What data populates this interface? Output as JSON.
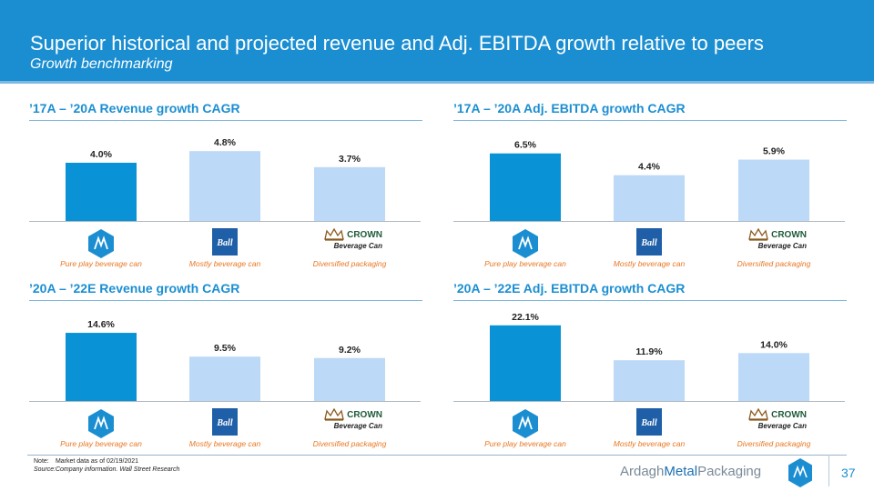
{
  "header": {
    "title": "Superior historical and projected revenue and Adj. EBITDA growth relative to peers",
    "subtitle": "Growth benchmarking"
  },
  "categories_captions": [
    "Pure play beverage can",
    "Mostly beverage can",
    "Diversified packaging"
  ],
  "logos": {
    "amp": "AMP",
    "ball": "Ball",
    "crown": "CROWN",
    "crown_sub": "Beverage Can"
  },
  "colors": {
    "header_blue": "#1b8ed1",
    "amp_bar": "#0a92d6",
    "peer_bar": "#bcd9f7",
    "caption_orange": "#e87722"
  },
  "chart_data": [
    {
      "type": "bar",
      "title": "’17A – ’20A Revenue growth CAGR",
      "categories": [
        "Pure play beverage can",
        "Mostly beverage can",
        "Diversified packaging"
      ],
      "values": [
        4.0,
        4.8,
        3.7
      ],
      "labels": [
        "4.0%",
        "4.8%",
        "3.7%"
      ],
      "ylim": [
        0,
        6.0
      ]
    },
    {
      "type": "bar",
      "title": "’17A – ’20A Adj. EBITDA growth CAGR",
      "categories": [
        "Pure play beverage can",
        "Mostly beverage can",
        "Diversified packaging"
      ],
      "values": [
        6.5,
        4.4,
        5.9
      ],
      "labels": [
        "6.5%",
        "4.4%",
        "5.9%"
      ],
      "ylim": [
        0,
        8.4
      ]
    },
    {
      "type": "bar",
      "title": "’20A – ’22E Revenue growth CAGR",
      "categories": [
        "Pure play beverage can",
        "Mostly beverage can",
        "Diversified packaging"
      ],
      "values": [
        14.6,
        9.5,
        9.2
      ],
      "labels": [
        "14.6%",
        "9.5%",
        "9.2%"
      ],
      "ylim": [
        0,
        18.7
      ]
    },
    {
      "type": "bar",
      "title": "’20A – ’22E Adj. EBITDA growth CAGR",
      "categories": [
        "Pure play beverage can",
        "Mostly beverage can",
        "Diversified packaging"
      ],
      "values": [
        22.1,
        11.9,
        14.0
      ],
      "labels": [
        "22.1%",
        "11.9%",
        "14.0%"
      ],
      "ylim": [
        0,
        25.5
      ]
    }
  ],
  "footer": {
    "note_label": "Note:",
    "note_text": "Market data as of 02/19/2021",
    "source_label": "Source:",
    "source_text": "Company information. Wall Street Research",
    "brand_light": "Ardagh",
    "brand_bold": "Metal",
    "brand_rest": "Packaging",
    "page_number": "37"
  }
}
